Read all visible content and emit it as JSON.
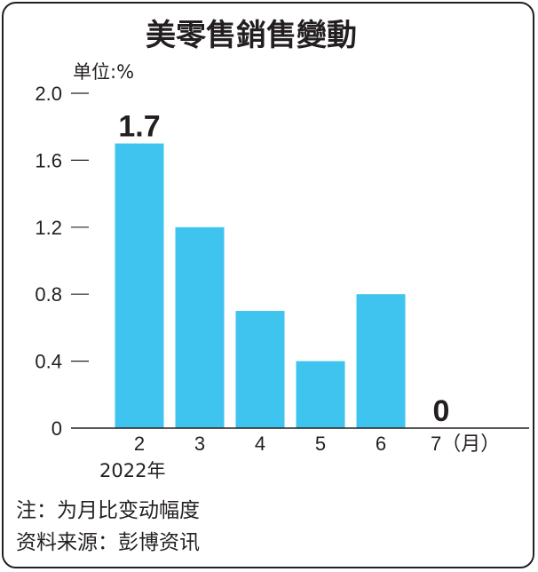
{
  "chart_data": {
    "type": "bar",
    "title": "美零售銷售變動",
    "unit_label": "单位:%",
    "categories": [
      "2",
      "3",
      "4",
      "5",
      "6",
      "7（月）"
    ],
    "values": [
      1.7,
      1.2,
      0.7,
      0.4,
      0.8,
      0
    ],
    "data_labels": {
      "0": "1.7",
      "5": "0"
    },
    "yticks": [
      "0",
      "0.4",
      "0.8",
      "1.2",
      "1.6",
      "2.0"
    ],
    "ylim": [
      0,
      2.0
    ],
    "xlabel": "2022年",
    "bar_color": "#3fc3ef",
    "grid": false
  },
  "notes": [
    "注：为月比变动幅度",
    "资料来源：彭博资讯"
  ]
}
